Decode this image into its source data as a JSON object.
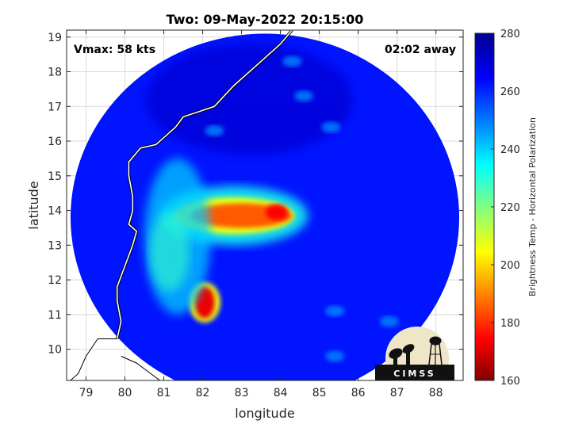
{
  "chart_data": {
    "type": "heatmap",
    "title": "Two: 09-May-2022 20:15:00",
    "xlabel": "longitude",
    "ylabel": "latitude",
    "xlim": [
      78.5,
      88.7
    ],
    "ylim": [
      9.1,
      19.2
    ],
    "xticks": [
      79,
      80,
      81,
      82,
      83,
      84,
      85,
      86,
      87,
      88
    ],
    "yticks": [
      10,
      11,
      12,
      13,
      14,
      15,
      16,
      17,
      18,
      19
    ],
    "grid": true,
    "annotations": {
      "vmax": "Vmax: 58 kts",
      "away": "02:02 away"
    },
    "colorbar": {
      "label": "Brightness Temp - Horizontal Polarization",
      "range": [
        160,
        280
      ],
      "ticks": [
        160,
        180,
        200,
        220,
        240,
        260,
        280
      ]
    },
    "swath": {
      "center_lon": 83.6,
      "center_lat": 13.8,
      "radius_lon": 5.0,
      "radius_lat": 5.3
    },
    "features": [
      {
        "name": "cold-band",
        "lon": [
          81.4,
          84.2
        ],
        "lat": [
          13.5,
          14.2
        ],
        "min_value": 175
      },
      {
        "name": "cold-spot",
        "lon": [
          81.8,
          82.3
        ],
        "lat": [
          10.9,
          11.8
        ],
        "min_value": 172
      },
      {
        "name": "cyan-region-west",
        "lon": [
          80.5,
          82.2
        ],
        "lat": [
          11.0,
          15.5
        ],
        "min_value": 225
      }
    ],
    "logo": "CIMSS"
  }
}
